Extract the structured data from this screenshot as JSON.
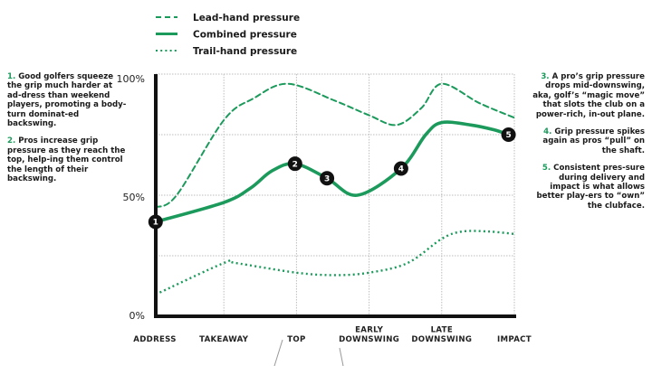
{
  "colors": {
    "series": "#1b9a5c",
    "marker": "#111111",
    "axis": "#111111",
    "grid": "#bdbdbd"
  },
  "left_notes": [
    {
      "num": "1.",
      "text": " Good golfers squeeze the grip much harder at ad-dress than weekend players, promoting a body-turn dominat-ed backswing."
    },
    {
      "num": "2.",
      "text": " Pros increase grip pressure as they reach the top, help-ing them control the length of their backswing."
    }
  ],
  "right_notes": [
    {
      "num": "3.",
      "text": " A pro’s grip pressure drops mid-downswing, aka, golf’s “magic move” that slots the club on a power-rich, in-out plane."
    },
    {
      "num": "4.",
      "text": " Grip pressure spikes again as pros “pull” on the shaft."
    },
    {
      "num": "5.",
      "text": " Consistent pres-sure during delivery and impact is what allows better play-ers to “own” the clubface."
    }
  ],
  "chart_data": {
    "type": "line",
    "legend_position": "top-left",
    "grid": true,
    "categories": [
      "ADDRESS",
      "TAKEAWAY",
      "TOP",
      "EARLY DOWNSWING",
      "LATE DOWNSWING",
      "IMPACT"
    ],
    "category_lines": [
      [
        "ADDRESS"
      ],
      [
        "TAKEAWAY"
      ],
      [
        "TOP"
      ],
      [
        "EARLY",
        "DOWNSWING"
      ],
      [
        "LATE",
        "DOWNSWING"
      ],
      [
        "IMPACT"
      ]
    ],
    "y_ticks": [
      {
        "value": 100,
        "label": "100%"
      },
      {
        "value": 50,
        "label": "50%"
      },
      {
        "value": 0,
        "label": "0%"
      }
    ],
    "ylim": [
      0,
      100
    ],
    "xlim": [
      0,
      5
    ],
    "series": [
      {
        "name": "Lead-hand pressure",
        "style": "dashed",
        "points": [
          [
            0.06,
            45
          ],
          [
            0.35,
            50
          ],
          [
            1,
            81
          ],
          [
            1.41,
            90
          ],
          [
            1.88,
            96
          ],
          [
            2.53,
            89
          ],
          [
            3.0,
            83
          ],
          [
            3.38,
            79
          ],
          [
            3.72,
            86
          ],
          [
            4.0,
            96
          ],
          [
            4.52,
            88
          ],
          [
            5.0,
            82
          ]
        ]
      },
      {
        "name": "Combined pressure",
        "style": "solid",
        "points": [
          [
            0.06,
            39
          ],
          [
            1,
            47
          ],
          [
            1.37,
            53
          ],
          [
            1.66,
            60
          ],
          [
            1.98,
            63
          ],
          [
            2.42,
            57
          ],
          [
            2.84,
            50
          ],
          [
            3.44,
            61
          ],
          [
            3.78,
            75
          ],
          [
            4.0,
            80
          ],
          [
            4.4,
            79
          ],
          [
            4.72,
            77
          ],
          [
            4.92,
            75
          ]
        ]
      },
      {
        "name": "Trail-hand pressure",
        "style": "dotted",
        "points": [
          [
            0.06,
            9
          ],
          [
            1,
            22
          ],
          [
            1.16,
            22
          ],
          [
            2.0,
            18
          ],
          [
            2.53,
            17
          ],
          [
            3.0,
            18
          ],
          [
            3.53,
            22
          ],
          [
            4.0,
            32
          ],
          [
            4.28,
            35
          ],
          [
            4.65,
            35
          ],
          [
            5.0,
            34
          ]
        ]
      }
    ],
    "annotations": [
      {
        "label": "1",
        "x": 0.06,
        "y": 39
      },
      {
        "label": "2",
        "x": 1.98,
        "y": 63
      },
      {
        "label": "3",
        "x": 2.42,
        "y": 57
      },
      {
        "label": "4",
        "x": 3.44,
        "y": 61
      },
      {
        "label": "5",
        "x": 4.92,
        "y": 75
      }
    ]
  }
}
